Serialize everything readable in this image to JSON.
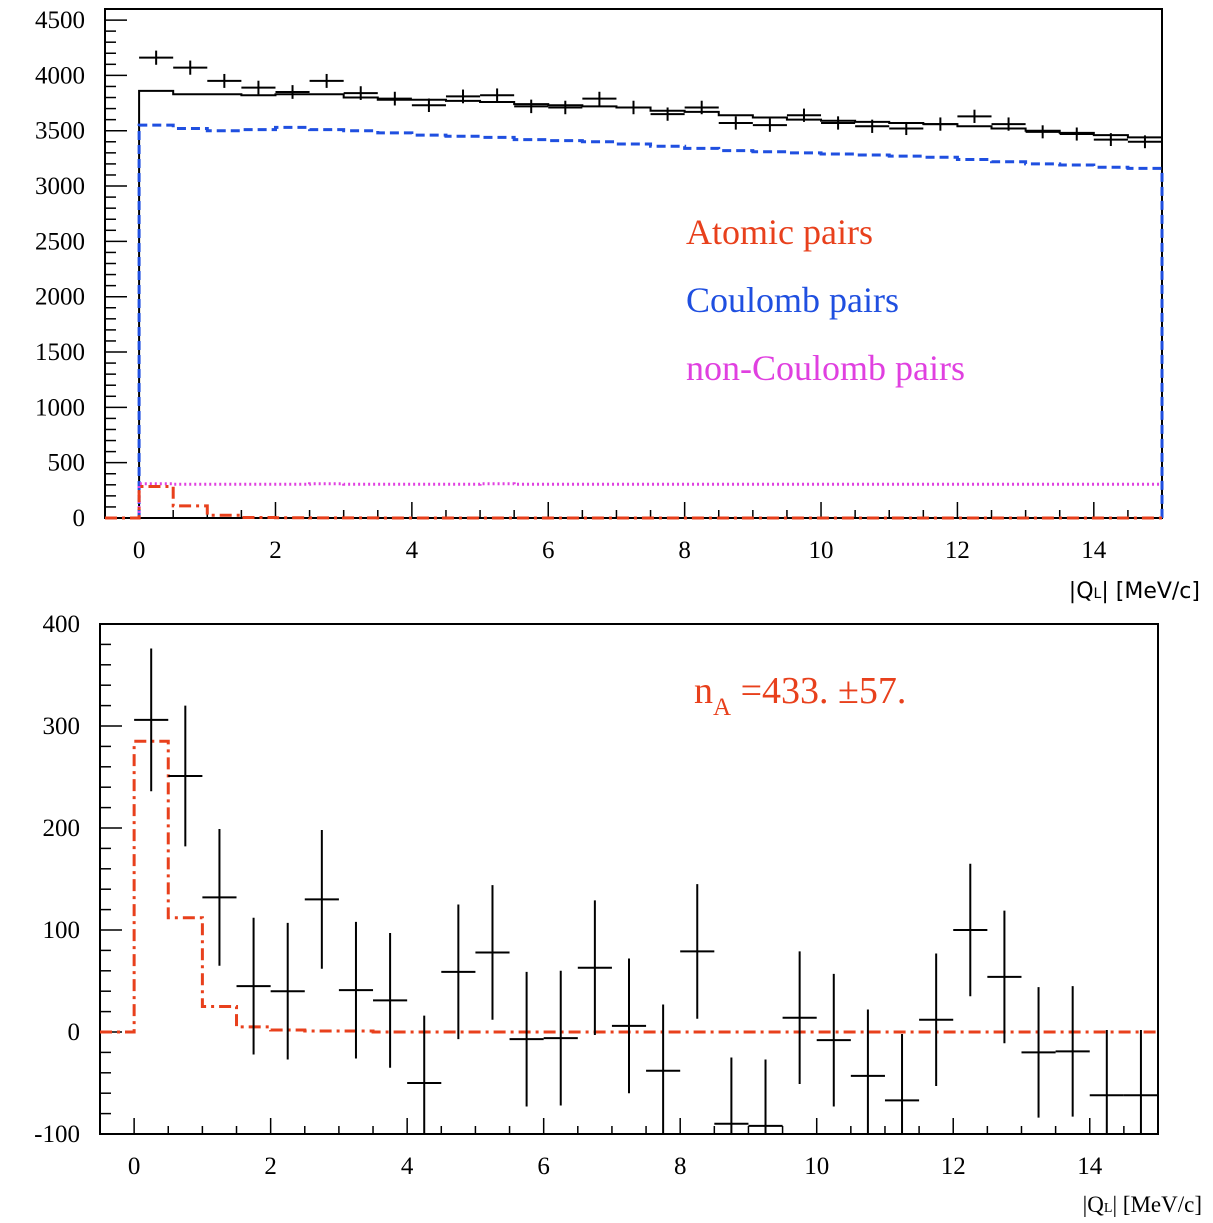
{
  "colors": {
    "data": "#000000",
    "atomic": "#e8401c",
    "coulomb": "#1f4fe0",
    "non_coulomb": "#e040e0"
  },
  "chart_data": [
    {
      "type": "histogram",
      "title": "",
      "xlabel": "|Q_L| [MeV/c]",
      "xlabel_main": "|Q",
      "xlabel_sub": "L",
      "xlabel_tail": "| [MeV/c]",
      "ylabel": "",
      "xlim": [
        -0.5,
        15
      ],
      "ylim": [
        0,
        4600
      ],
      "x_ticks": [
        0,
        2,
        4,
        6,
        8,
        10,
        12,
        14
      ],
      "x_tick_labels": [
        "0",
        "2",
        "4",
        "6",
        "8",
        "10",
        "12",
        "14"
      ],
      "y_ticks": [
        0,
        500,
        1000,
        1500,
        2000,
        2500,
        3000,
        3500,
        4000,
        4500
      ],
      "y_tick_labels": [
        "0",
        "500",
        "1000",
        "1500",
        "2000",
        "2500",
        "3000",
        "3500",
        "4000",
        "4500"
      ],
      "grid": false,
      "bin_width": 0.5,
      "bin_centers": [
        0.25,
        0.75,
        1.25,
        1.75,
        2.25,
        2.75,
        3.25,
        3.75,
        4.25,
        4.75,
        5.25,
        5.75,
        6.25,
        6.75,
        7.25,
        7.75,
        8.25,
        8.75,
        9.25,
        9.75,
        10.25,
        10.75,
        11.25,
        11.75,
        12.25,
        12.75,
        13.25,
        13.75,
        14.25,
        14.75
      ],
      "legend": {
        "placement": "right",
        "entries": [
          "Atomic pairs",
          "Coulomb pairs",
          "non-Coulomb pairs"
        ]
      },
      "series": [
        {
          "kind": "data-points",
          "values": [
            4160,
            4070,
            3950,
            3890,
            3850,
            3950,
            3840,
            3790,
            3730,
            3810,
            3820,
            3720,
            3710,
            3790,
            3710,
            3650,
            3710,
            3570,
            3550,
            3640,
            3570,
            3540,
            3520,
            3560,
            3630,
            3560,
            3490,
            3470,
            3420,
            3400
          ],
          "errors": [
            64,
            64,
            63,
            62,
            62,
            63,
            62,
            62,
            61,
            62,
            62,
            61,
            61,
            62,
            61,
            60,
            61,
            60,
            60,
            60,
            60,
            60,
            59,
            60,
            60,
            60,
            59,
            59,
            58,
            58
          ]
        },
        {
          "kind": "total-fit",
          "values": [
            3860,
            3830,
            3830,
            3820,
            3830,
            3830,
            3800,
            3780,
            3780,
            3770,
            3760,
            3740,
            3730,
            3720,
            3710,
            3680,
            3670,
            3640,
            3620,
            3600,
            3590,
            3580,
            3570,
            3560,
            3540,
            3520,
            3500,
            3480,
            3460,
            3440
          ]
        },
        {
          "kind": "coulomb",
          "values": [
            3550,
            3520,
            3500,
            3510,
            3530,
            3510,
            3500,
            3480,
            3460,
            3450,
            3440,
            3420,
            3410,
            3400,
            3380,
            3360,
            3340,
            3320,
            3310,
            3300,
            3290,
            3280,
            3270,
            3260,
            3240,
            3220,
            3200,
            3190,
            3170,
            3160
          ]
        },
        {
          "kind": "non-coulomb",
          "values": [
            310,
            305,
            305,
            305,
            305,
            310,
            305,
            305,
            305,
            305,
            310,
            305,
            305,
            305,
            305,
            305,
            305,
            305,
            305,
            305,
            305,
            305,
            305,
            305,
            305,
            305,
            305,
            305,
            305,
            305
          ]
        },
        {
          "kind": "atomic",
          "values": [
            285,
            110,
            25,
            5,
            2,
            1,
            1,
            0,
            0,
            0,
            0,
            0,
            0,
            0,
            0,
            0,
            0,
            0,
            0,
            0,
            0,
            0,
            0,
            0,
            0,
            0,
            0,
            0,
            0,
            0
          ]
        }
      ]
    },
    {
      "type": "histogram",
      "title": "",
      "xlabel": "|Q_L| [MeV/c]",
      "xlabel_main": "|Q",
      "xlabel_sub": "L",
      "xlabel_tail": "| [MeV/c]",
      "ylabel": "",
      "xlim": [
        -0.5,
        15
      ],
      "ylim": [
        -100,
        400
      ],
      "x_ticks": [
        0,
        2,
        4,
        6,
        8,
        10,
        12,
        14
      ],
      "x_tick_labels": [
        "0",
        "2",
        "4",
        "6",
        "8",
        "10",
        "12",
        "14"
      ],
      "y_ticks": [
        -100,
        0,
        100,
        200,
        300,
        400
      ],
      "y_tick_labels": [
        "-100",
        "0",
        "100",
        "200",
        "300",
        "400"
      ],
      "grid": false,
      "bin_width": 0.5,
      "annotation": {
        "text_main": "n",
        "text_sub": "A",
        "text_tail": " =433. ±57."
      },
      "bin_centers": [
        0.25,
        0.75,
        1.25,
        1.75,
        2.25,
        2.75,
        3.25,
        3.75,
        4.25,
        4.75,
        5.25,
        5.75,
        6.25,
        6.75,
        7.25,
        7.75,
        8.25,
        8.75,
        9.25,
        9.75,
        10.25,
        10.75,
        11.25,
        11.75,
        12.25,
        12.75,
        13.25,
        13.75,
        14.25,
        14.75
      ],
      "series": [
        {
          "kind": "data-points",
          "values": [
            306,
            251,
            132,
            45,
            40,
            130,
            41,
            31,
            -50,
            59,
            78,
            -7,
            -6,
            63,
            6,
            -38,
            79,
            -90,
            -92,
            14,
            -8,
            -43,
            -67,
            12,
            100,
            54,
            -20,
            -19,
            -62,
            -62
          ],
          "errors": [
            70,
            69,
            67,
            67,
            67,
            68,
            67,
            66,
            66,
            66,
            66,
            66,
            66,
            66,
            66,
            65,
            66,
            65,
            65,
            65,
            65,
            65,
            65,
            65,
            65,
            65,
            64,
            64,
            64,
            64
          ]
        },
        {
          "kind": "atomic",
          "values": [
            285,
            112,
            25,
            5,
            2,
            1,
            1,
            0,
            0,
            0,
            0,
            0,
            0,
            0,
            0,
            0,
            0,
            0,
            0,
            0,
            0,
            0,
            0,
            0,
            0,
            0,
            0,
            0,
            0,
            0
          ]
        }
      ]
    }
  ]
}
